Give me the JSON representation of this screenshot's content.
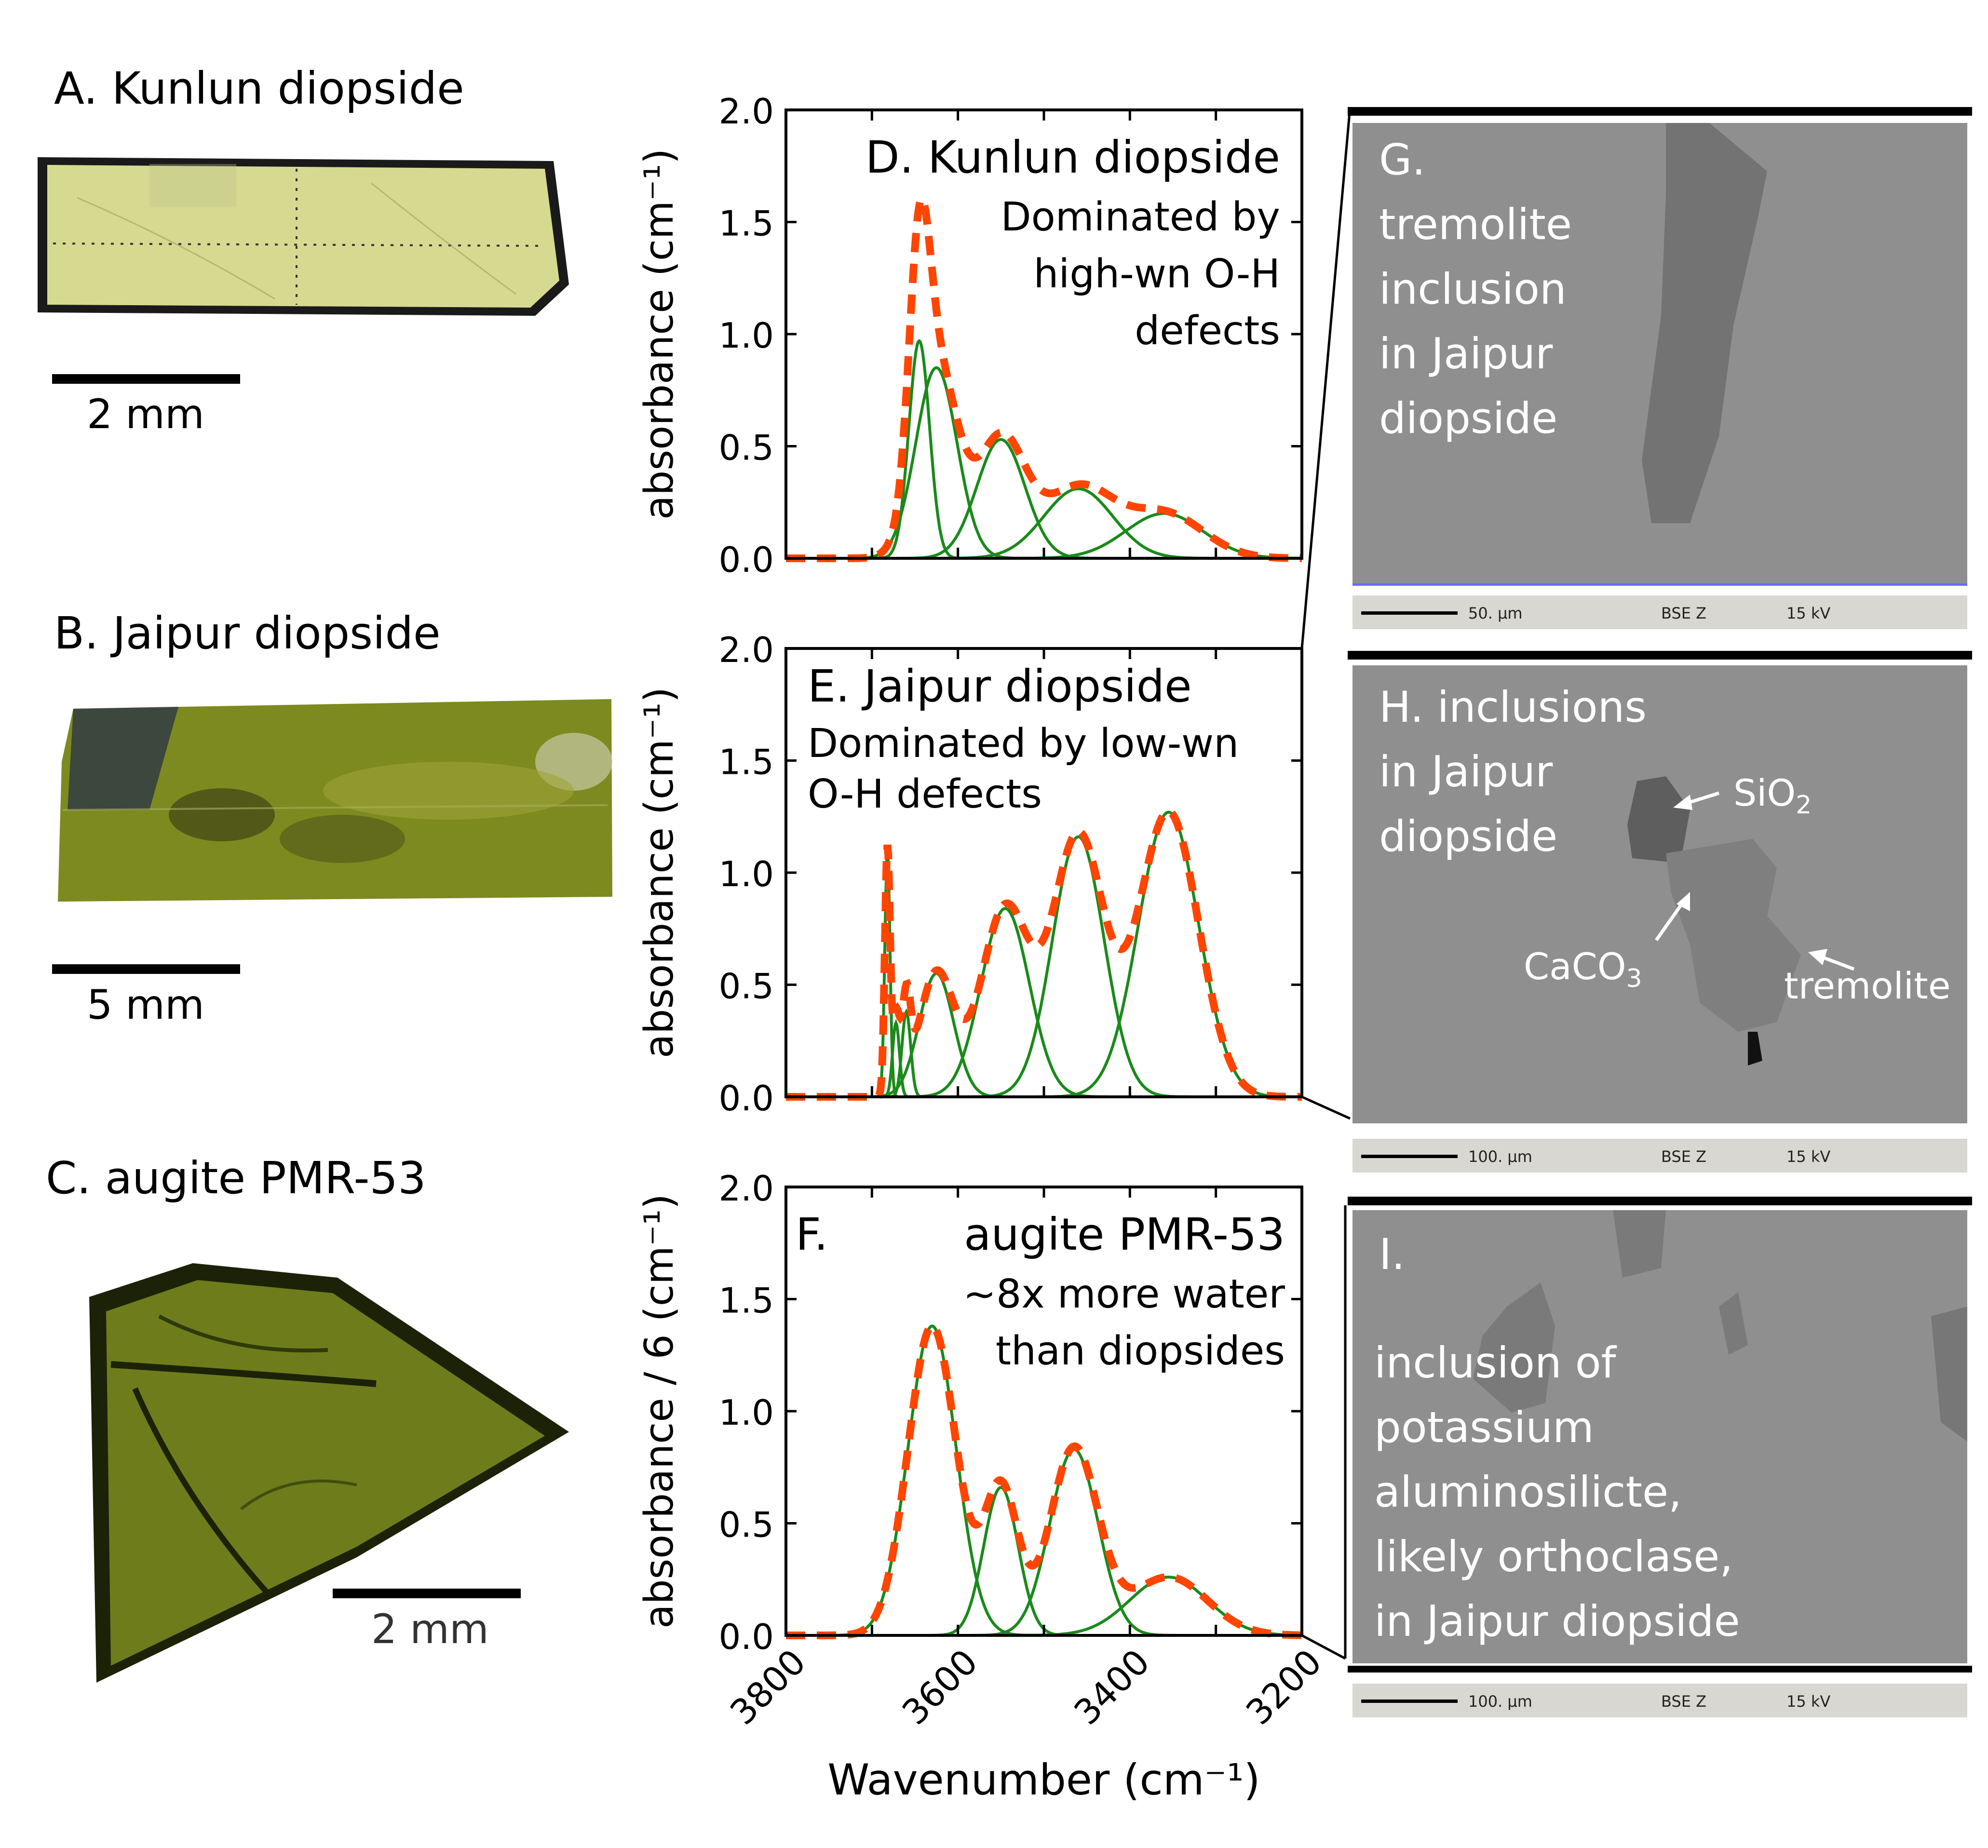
{
  "left_panels": {
    "a": {
      "title": "A. Kunlun diopside",
      "scale": "2 mm"
    },
    "b": {
      "title": "B. Jaipur diopside",
      "scale": "5 mm"
    },
    "c": {
      "title": "C. augite PMR-53",
      "scale": "2 mm"
    }
  },
  "colors": {
    "fit_total": "#ff4500",
    "fit_peaks": "#1a8a1a",
    "sample_yellow": "#d4d88a",
    "sample_green": "#7c8a1e",
    "sample_olive": "#6b7d1a",
    "sem_gray": "#8f8f8f"
  },
  "chart_data": [
    {
      "type": "line",
      "panel": "D",
      "title": "D. Kunlun diopside",
      "annotation": [
        "Dominated by",
        "high-wn O-H",
        "defects"
      ],
      "ylabel": "absorbance (cm⁻¹)",
      "xlim": [
        3800,
        3200
      ],
      "ylim": [
        0,
        2.0
      ],
      "yticks": [
        "0.0",
        "0.5",
        "1.0",
        "1.5",
        "2.0"
      ],
      "peaks": [
        {
          "center": 3645,
          "height": 0.97,
          "sigma": 12
        },
        {
          "center": 3625,
          "height": 0.85,
          "sigma": 24
        },
        {
          "center": 3550,
          "height": 0.53,
          "sigma": 28
        },
        {
          "center": 3460,
          "height": 0.31,
          "sigma": 40
        },
        {
          "center": 3360,
          "height": 0.2,
          "sigma": 45
        }
      ],
      "total_scale": 1.5
    },
    {
      "type": "line",
      "panel": "E",
      "title": "E. Jaipur diopside",
      "annotation": [
        "Dominated by low-wn",
        "O-H defects"
      ],
      "ylabel": "absorbance (cm⁻¹)",
      "xlim": [
        3800,
        3200
      ],
      "ylim": [
        0,
        2.0
      ],
      "yticks": [
        "0.0",
        "0.5",
        "1.0",
        "1.5",
        "2.0"
      ],
      "peaks": [
        {
          "center": 3682,
          "height": 1.1,
          "sigma": 3
        },
        {
          "center": 3672,
          "height": 0.33,
          "sigma": 4
        },
        {
          "center": 3660,
          "height": 0.38,
          "sigma": 5
        },
        {
          "center": 3625,
          "height": 0.55,
          "sigma": 20
        },
        {
          "center": 3545,
          "height": 0.84,
          "sigma": 28
        },
        {
          "center": 3460,
          "height": 1.16,
          "sigma": 30
        },
        {
          "center": 3355,
          "height": 1.27,
          "sigma": 35
        }
      ],
      "total_scale": 1.0
    },
    {
      "type": "line",
      "panel": "F",
      "title": "F.",
      "subtitle": "augite PMR-53",
      "annotation": [
        "~8x more water",
        "than diopsides"
      ],
      "ylabel": "absorbance / 6 (cm⁻¹)",
      "xlabel": "Wavenumber (cm⁻¹)",
      "xlim": [
        3800,
        3200
      ],
      "ylim": [
        0,
        2.0
      ],
      "xticks": [
        "3800",
        "3600",
        "3400",
        "3200"
      ],
      "yticks": [
        "0.0",
        "0.5",
        "1.0",
        "1.5",
        "2.0"
      ],
      "peaks": [
        {
          "center": 3630,
          "height": 1.38,
          "sigma": 28
        },
        {
          "center": 3550,
          "height": 0.66,
          "sigma": 20
        },
        {
          "center": 3465,
          "height": 0.83,
          "sigma": 28
        },
        {
          "center": 3355,
          "height": 0.26,
          "sigma": 45
        }
      ],
      "total_scale": 1.0
    }
  ],
  "sem_panels": {
    "g": {
      "lines": [
        "G.",
        "tremolite",
        "inclusion",
        "in Jaipur",
        "diopside"
      ],
      "scale": "50. µm",
      "mode": "BSE Z",
      "kv": "15 kV"
    },
    "h": {
      "lines": [
        "H. inclusions",
        "in Jaipur",
        "diopside"
      ],
      "sio2": "SiO",
      "sio2_sub": "2",
      "caco3": "CaCO",
      "caco3_sub": "3",
      "tremolite": "tremolite",
      "scale": "100. µm",
      "mode": "BSE Z",
      "kv": "15 kV"
    },
    "i": {
      "head": "I.",
      "lines": [
        "inclusion of",
        "potassium",
        "aluminosilicte,",
        "likely orthoclase,",
        "in Jaipur diopside"
      ],
      "scale": "100. µm",
      "mode": "BSE Z",
      "kv": "15 kV"
    }
  }
}
